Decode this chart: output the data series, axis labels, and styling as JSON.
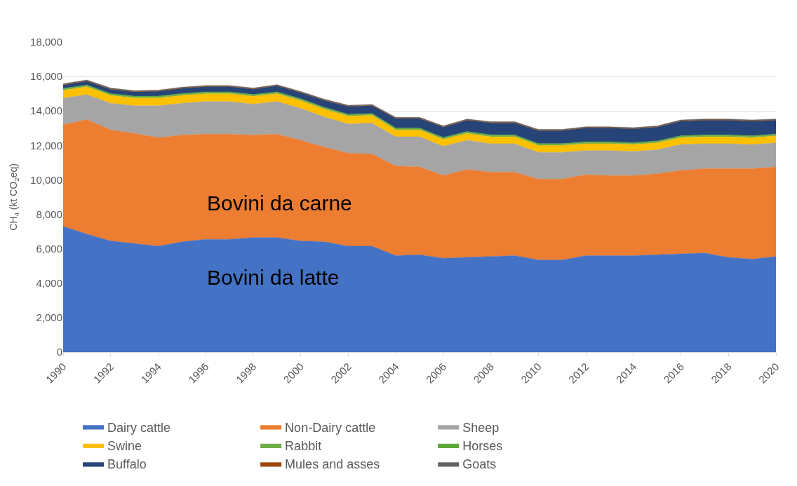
{
  "chart_data": {
    "type": "area",
    "stacked": true,
    "ylabel": "CH$_{4}$ (kt CO$_{2}$eq)",
    "x": [
      1990,
      1991,
      1992,
      1993,
      1994,
      1995,
      1996,
      1997,
      1998,
      1999,
      2000,
      2001,
      2002,
      2003,
      2004,
      2005,
      2006,
      2007,
      2008,
      2009,
      2010,
      2011,
      2012,
      2013,
      2014,
      2015,
      2016,
      2017,
      2018,
      2019,
      2020
    ],
    "series": [
      {
        "name": "Dairy cattle",
        "color": "#4472c4",
        "values": [
          7300,
          6850,
          6450,
          6300,
          6150,
          6400,
          6550,
          6550,
          6650,
          6650,
          6450,
          6400,
          6150,
          6150,
          5600,
          5650,
          5450,
          5500,
          5550,
          5600,
          5350,
          5350,
          5600,
          5600,
          5600,
          5650,
          5700,
          5750,
          5500,
          5400,
          5550
        ]
      },
      {
        "name": "Non-Dairy cattle",
        "color": "#ed7d31",
        "values": [
          5900,
          6650,
          6450,
          6400,
          6300,
          6200,
          6100,
          6100,
          5950,
          6000,
          5850,
          5500,
          5400,
          5350,
          5200,
          5100,
          4800,
          5100,
          4900,
          4850,
          4700,
          4700,
          4700,
          4650,
          4650,
          4700,
          4850,
          4900,
          5150,
          5250,
          5200
        ]
      },
      {
        "name": "Sheep",
        "color": "#a5a5a5",
        "values": [
          1550,
          1450,
          1550,
          1600,
          1850,
          1850,
          1900,
          1900,
          1800,
          1900,
          1850,
          1750,
          1700,
          1800,
          1700,
          1750,
          1700,
          1700,
          1650,
          1650,
          1550,
          1550,
          1400,
          1450,
          1400,
          1400,
          1500,
          1450,
          1450,
          1400,
          1400
        ]
      },
      {
        "name": "Swine",
        "color": "#ffc000",
        "values": [
          450,
          450,
          450,
          450,
          450,
          450,
          450,
          450,
          450,
          450,
          450,
          450,
          450,
          450,
          400,
          400,
          400,
          400,
          400,
          400,
          400,
          400,
          400,
          400,
          400,
          400,
          400,
          400,
          400,
          400,
          400
        ]
      },
      {
        "name": "Rabbit",
        "color": "#70ad47",
        "values": [
          50,
          50,
          50,
          50,
          50,
          50,
          50,
          50,
          50,
          50,
          50,
          50,
          50,
          50,
          50,
          50,
          50,
          50,
          50,
          50,
          50,
          50,
          50,
          50,
          50,
          50,
          50,
          50,
          50,
          50,
          50
        ]
      },
      {
        "name": "Horses",
        "color": "#5fa83a",
        "values": [
          60,
          60,
          60,
          60,
          60,
          60,
          60,
          60,
          60,
          60,
          60,
          60,
          60,
          60,
          60,
          60,
          60,
          60,
          60,
          60,
          60,
          60,
          60,
          60,
          60,
          60,
          60,
          60,
          60,
          60,
          60
        ]
      },
      {
        "name": "Buffalo",
        "color": "#264478",
        "values": [
          200,
          220,
          250,
          250,
          280,
          300,
          300,
          300,
          300,
          350,
          350,
          400,
          450,
          450,
          550,
          550,
          600,
          650,
          700,
          700,
          750,
          750,
          800,
          800,
          800,
          800,
          850,
          850,
          850,
          850,
          800
        ]
      },
      {
        "name": "Mules and asses",
        "color": "#9e480e",
        "values": [
          20,
          20,
          20,
          20,
          20,
          20,
          20,
          20,
          20,
          20,
          20,
          20,
          20,
          20,
          20,
          20,
          20,
          20,
          20,
          20,
          20,
          20,
          20,
          20,
          20,
          20,
          20,
          20,
          20,
          20,
          20
        ]
      },
      {
        "name": "Goats",
        "color": "#636363",
        "values": [
          50,
          50,
          50,
          50,
          50,
          50,
          50,
          50,
          50,
          50,
          50,
          50,
          50,
          50,
          50,
          50,
          50,
          50,
          50,
          50,
          50,
          50,
          50,
          50,
          50,
          50,
          50,
          50,
          50,
          50,
          50
        ]
      }
    ],
    "xlim": [
      1990,
      2020
    ],
    "xticks": [
      1990,
      1992,
      1994,
      1996,
      1998,
      2000,
      2002,
      2004,
      2006,
      2008,
      2010,
      2012,
      2014,
      2016,
      2018,
      2020
    ],
    "ylim": [
      0,
      18000
    ],
    "yticks": [
      0,
      {
        "value": 2000,
        "label": "2,000"
      },
      {
        "value": 4000,
        "label": "4,000"
      },
      {
        "value": 6000,
        "label": "6,000"
      },
      {
        "value": 8000,
        "label": "8,000"
      },
      {
        "value": 10000,
        "label": "10,000"
      },
      {
        "value": 12000,
        "label": "12,000"
      },
      {
        "value": 14000,
        "label": "14,000"
      },
      {
        "value": 16000,
        "label": "16,000"
      },
      {
        "value": 18000,
        "label": "18,000"
      }
    ],
    "grid": "y",
    "legend": "bottom",
    "annotations": [
      "Bovini da carne",
      "Bovini da latte"
    ]
  }
}
